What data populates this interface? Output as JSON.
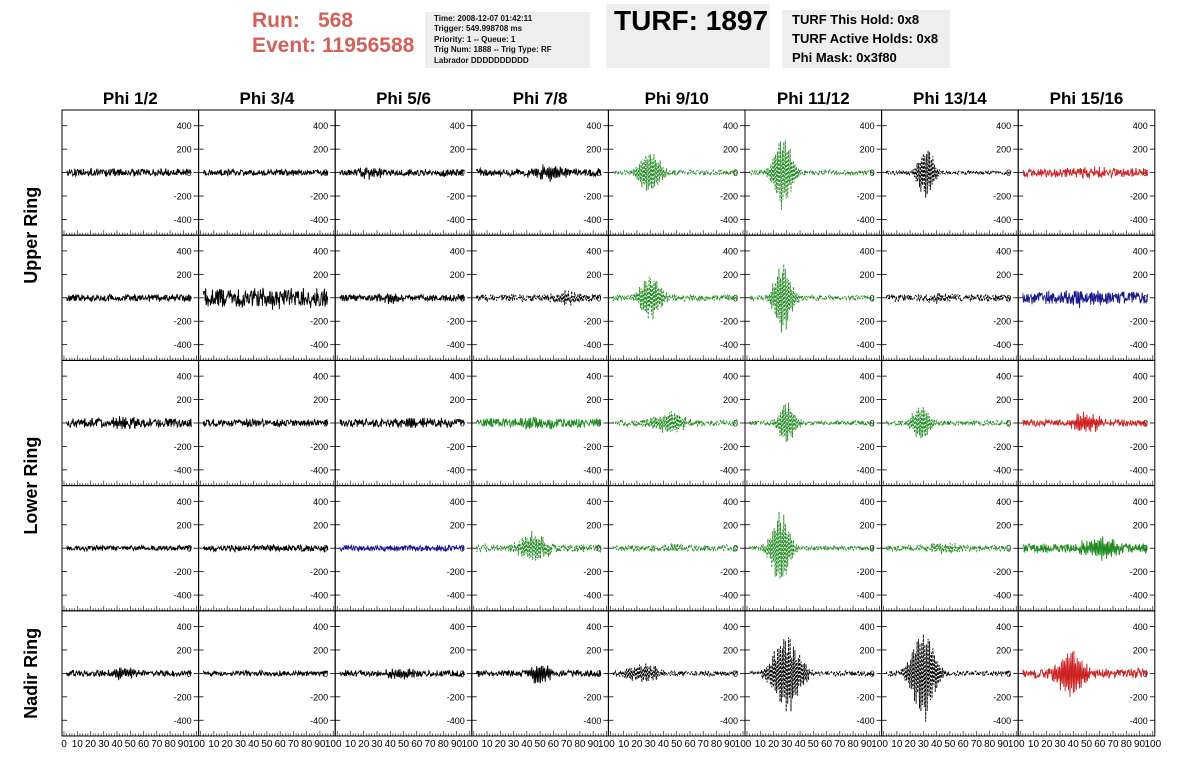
{
  "header": {
    "run_label": "Run:",
    "run_value": "568",
    "event_label": "Event:",
    "event_value": "11956588",
    "info_lines": [
      "Time: 2008-12-07 01:42:11",
      "Trigger: 549.998708 ms",
      "Priority: 1 -- Queue: 1",
      "Trig Num: 1888 -- Trig Type: RF",
      "Labrador DDDDDDDDDD"
    ],
    "turf_title": "TURF: 1897",
    "turf_lines": [
      "TURF This Hold: 0x8",
      "TURF Active Holds: 0x8",
      "Phi Mask: 0x3f80"
    ],
    "colors": {
      "run_text": "#d4605a",
      "box_bg": "#eeeeee"
    }
  },
  "chart_data": {
    "type": "line",
    "column_titles": [
      "Phi 1/2",
      "Phi 3/4",
      "Phi 5/6",
      "Phi 7/8",
      "Phi 9/10",
      "Phi 11/12",
      "Phi 13/14",
      "Phi 15/16"
    ],
    "row_titles": [
      "Upper Ring",
      "Lower Ring",
      "Nadir Ring"
    ],
    "row_title_spans": [
      2,
      2,
      1
    ],
    "ylim": [
      -500,
      500
    ],
    "y_tick_labels": [
      [
        "400",
        "200",
        "0",
        "-200",
        "-400"
      ],
      [
        "400",
        "200",
        "0",
        "-200",
        "-400"
      ],
      [
        "400",
        "200",
        "0",
        "-200",
        "-400"
      ],
      [
        "400",
        "200",
        "0",
        "-200",
        "-400"
      ],
      [
        "400",
        "200",
        "0",
        "-200",
        "-400"
      ]
    ],
    "y_tick_values": [
      400,
      200,
      0,
      -200,
      -400
    ],
    "xlim": [
      0,
      100
    ],
    "x_tick_labels": [
      "0",
      "10",
      "20",
      "30",
      "40",
      "50",
      "60",
      "70",
      "80",
      "90",
      "100"
    ],
    "x_tick_values": [
      0,
      10,
      20,
      30,
      40,
      50,
      60,
      70,
      80,
      90,
      100
    ],
    "colors": {
      "black": "#000000",
      "green": "#1f8a1f",
      "red": "#cc2222",
      "blue": "#1a1a8c"
    },
    "panels": [
      [
        {
          "color": "black",
          "dashed": false,
          "amp": 38,
          "burst": 0,
          "center": 50,
          "width": 12
        },
        {
          "color": "black",
          "dashed": false,
          "amp": 30,
          "burst": 0,
          "center": 50,
          "width": 12
        },
        {
          "color": "black",
          "dashed": false,
          "amp": 35,
          "burst": 40,
          "center": 25,
          "width": 10
        },
        {
          "color": "black",
          "dashed": false,
          "amp": 38,
          "burst": 60,
          "center": 55,
          "width": 12
        },
        {
          "color": "green",
          "dashed": true,
          "amp": 25,
          "burst": 190,
          "center": 30,
          "width": 9
        },
        {
          "color": "green",
          "dashed": true,
          "amp": 25,
          "burst": 330,
          "center": 27,
          "width": 8
        },
        {
          "color": "black",
          "dashed": true,
          "amp": 20,
          "burst": 230,
          "center": 32,
          "width": 7
        },
        {
          "color": "red",
          "dashed": false,
          "amp": 45,
          "burst": 25,
          "center": 50,
          "width": 20
        }
      ],
      [
        {
          "color": "black",
          "dashed": false,
          "amp": 36,
          "burst": 0,
          "center": 50,
          "width": 12
        },
        {
          "color": "black",
          "dashed": false,
          "amp": 95,
          "burst": 20,
          "center": 60,
          "width": 25
        },
        {
          "color": "black",
          "dashed": false,
          "amp": 33,
          "burst": 40,
          "center": 40,
          "width": 10
        },
        {
          "color": "black",
          "dashed": true,
          "amp": 36,
          "burst": 60,
          "center": 70,
          "width": 10
        },
        {
          "color": "green",
          "dashed": true,
          "amp": 30,
          "burst": 200,
          "center": 30,
          "width": 9
        },
        {
          "color": "green",
          "dashed": true,
          "amp": 25,
          "burst": 300,
          "center": 27,
          "width": 8
        },
        {
          "color": "black",
          "dashed": true,
          "amp": 35,
          "burst": 30,
          "center": 40,
          "width": 10
        },
        {
          "color": "blue",
          "dashed": false,
          "amp": 60,
          "burst": 40,
          "center": 45,
          "width": 25
        }
      ],
      [
        {
          "color": "black",
          "dashed": false,
          "amp": 45,
          "burst": 30,
          "center": 45,
          "width": 15
        },
        {
          "color": "black",
          "dashed": false,
          "amp": 36,
          "burst": 0,
          "center": 50,
          "width": 12
        },
        {
          "color": "black",
          "dashed": false,
          "amp": 40,
          "burst": 30,
          "center": 60,
          "width": 15
        },
        {
          "color": "green",
          "dashed": false,
          "amp": 45,
          "burst": 25,
          "center": 50,
          "width": 20
        },
        {
          "color": "green",
          "dashed": true,
          "amp": 30,
          "burst": 90,
          "center": 45,
          "width": 14
        },
        {
          "color": "green",
          "dashed": true,
          "amp": 25,
          "burst": 200,
          "center": 30,
          "width": 7
        },
        {
          "color": "green",
          "dashed": true,
          "amp": 25,
          "burst": 180,
          "center": 28,
          "width": 7
        },
        {
          "color": "red",
          "dashed": false,
          "amp": 35,
          "burst": 80,
          "center": 50,
          "width": 12
        }
      ],
      [
        {
          "color": "black",
          "dashed": false,
          "amp": 25,
          "burst": 0,
          "center": 50,
          "width": 12
        },
        {
          "color": "black",
          "dashed": false,
          "amp": 32,
          "burst": 0,
          "center": 50,
          "width": 12
        },
        {
          "color": "blue",
          "dashed": false,
          "amp": 30,
          "burst": 0,
          "center": 50,
          "width": 12
        },
        {
          "color": "green",
          "dashed": true,
          "amp": 35,
          "burst": 130,
          "center": 45,
          "width": 12
        },
        {
          "color": "green",
          "dashed": true,
          "amp": 30,
          "burst": 30,
          "center": 45,
          "width": 12
        },
        {
          "color": "green",
          "dashed": true,
          "amp": 25,
          "burst": 330,
          "center": 25,
          "width": 8
        },
        {
          "color": "green",
          "dashed": true,
          "amp": 30,
          "burst": 30,
          "center": 45,
          "width": 12
        },
        {
          "color": "green",
          "dashed": false,
          "amp": 45,
          "burst": 80,
          "center": 60,
          "width": 18
        }
      ],
      [
        {
          "color": "black",
          "dashed": false,
          "amp": 32,
          "burst": 40,
          "center": 45,
          "width": 12
        },
        {
          "color": "black",
          "dashed": false,
          "amp": 25,
          "burst": 0,
          "center": 50,
          "width": 12
        },
        {
          "color": "black",
          "dashed": false,
          "amp": 32,
          "burst": 40,
          "center": 50,
          "width": 12
        },
        {
          "color": "black",
          "dashed": false,
          "amp": 32,
          "burst": 90,
          "center": 50,
          "width": 8
        },
        {
          "color": "black",
          "dashed": true,
          "amp": 25,
          "burst": 80,
          "center": 25,
          "width": 14
        },
        {
          "color": "black",
          "dashed": true,
          "amp": 25,
          "burst": 360,
          "center": 30,
          "width": 12
        },
        {
          "color": "black",
          "dashed": true,
          "amp": 25,
          "burst": 420,
          "center": 30,
          "width": 10
        },
        {
          "color": "red",
          "dashed": false,
          "amp": 45,
          "burst": 200,
          "center": 38,
          "width": 12
        }
      ]
    ]
  }
}
